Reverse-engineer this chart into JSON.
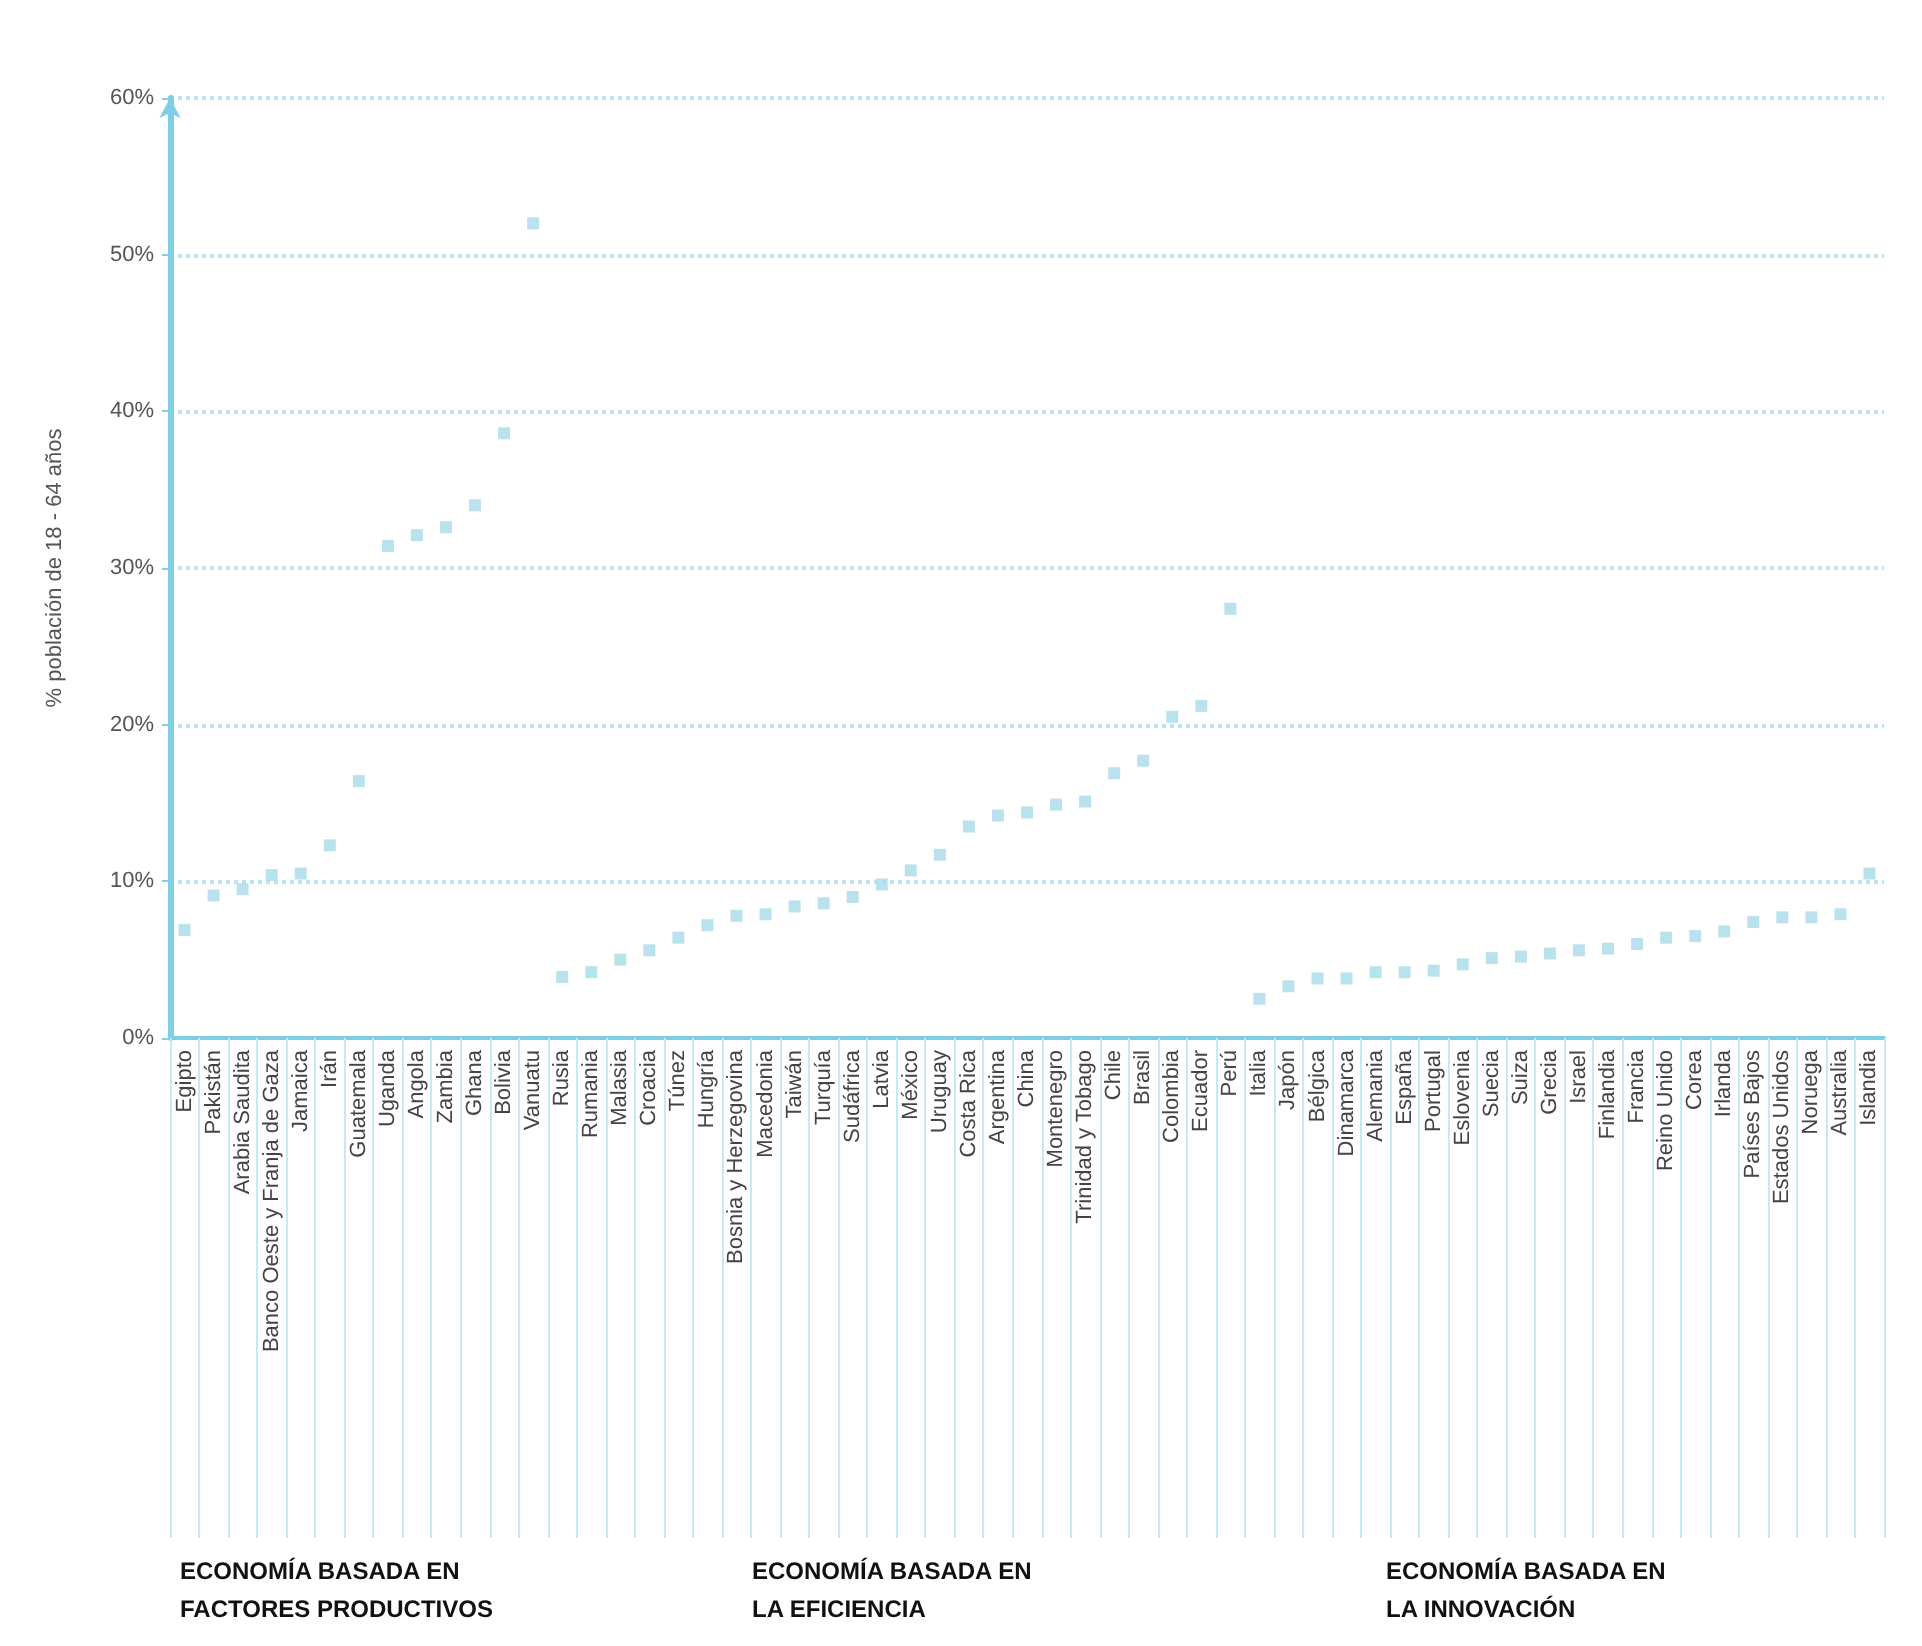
{
  "chart_data": {
    "type": "scatter",
    "ylabel": "% población de 18 - 64 años",
    "categories": [
      "Egipto",
      "Pakistán",
      "Arabia Saudita",
      "Banco Oeste y Franja de Gaza",
      "Jamaica",
      "Irán",
      "Guatemala",
      "Uganda",
      "Angola",
      "Zambia",
      "Ghana",
      "Bolivia",
      "Vanuatu",
      "Rusia",
      "Rumania",
      "Malasia",
      "Croacia",
      "Túnez",
      "Hungría",
      "Bosnia y Herzegovina",
      "Macedonia",
      "Taiwán",
      "Turquía",
      "Sudáfrica",
      "Latvia",
      "México",
      "Uruguay",
      "Costa Rica",
      "Argentina",
      "China",
      "Montenegro",
      "Trinidad y Tobago",
      "Chile",
      "Brasil",
      "Colombia",
      "Ecuador",
      "Perú",
      "Italia",
      "Japón",
      "Bélgica",
      "Dinamarca",
      "Alemania",
      "España",
      "Portugal",
      "Eslovenia",
      "Suecia",
      "Suiza",
      "Grecia",
      "Israel",
      "Finlandia",
      "Francia",
      "Reino Unido",
      "Corea",
      "Irlanda",
      "Países Bajos",
      "Estados Unidos",
      "Noruega",
      "Australia",
      "Islandia"
    ],
    "series": [
      {
        "color": "#a8dbe8",
        "values": [
          6.9,
          9.1,
          9.5,
          10.4,
          10.5,
          12.3,
          16.4,
          31.4,
          32.1,
          32.6,
          34.0,
          38.6,
          52.0,
          3.9,
          4.2,
          5.0,
          5.6,
          6.4,
          7.2,
          7.8,
          7.9,
          8.4,
          8.6,
          9.0,
          9.8,
          10.7,
          11.7,
          13.5,
          14.2,
          14.4,
          14.9,
          15.1,
          16.9,
          17.7,
          20.5,
          21.2,
          27.4,
          2.5,
          3.3,
          3.8,
          3.8,
          4.2,
          4.2,
          4.3,
          4.7,
          5.1,
          5.2,
          5.4,
          5.6,
          5.7,
          6.0,
          6.4,
          6.5,
          6.8,
          7.4,
          7.7,
          7.7,
          7.9,
          10.5
        ]
      }
    ],
    "ylim": [
      0,
      60
    ],
    "yticks": [
      {
        "value": 0,
        "label": "0%"
      },
      {
        "value": 10,
        "label": "10%"
      },
      {
        "value": 20,
        "label": "20%"
      },
      {
        "value": 30,
        "label": "30%"
      },
      {
        "value": 40,
        "label": "40%"
      },
      {
        "value": 50,
        "label": "50%"
      },
      {
        "value": 60,
        "label": "60%"
      }
    ],
    "grid": "y",
    "marker": "square",
    "annotations": [
      "ECONOMÍA BASADA EN\nFACTORES PRODUCTIVOS",
      "ECONOMÍA BASADA EN\nLA EFICIENCIA",
      "ECONOMÍA BASADA EN\nLA INNOVACIÓN"
    ]
  }
}
